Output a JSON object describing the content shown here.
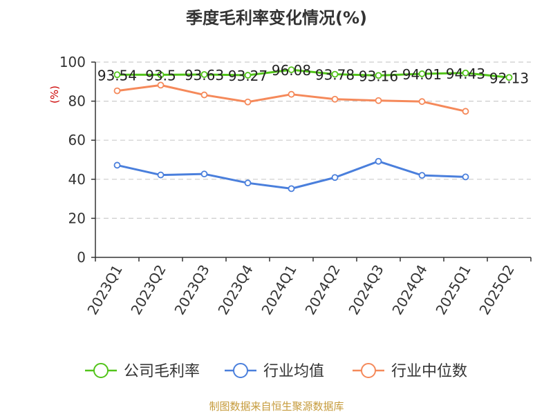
{
  "colors": {
    "company": "#52c41a",
    "industry_avg": "#4a7fdc",
    "industry_median": "#f5895a",
    "axis": "#333333",
    "grid": "#cccccc",
    "ylabel": "#cc0000",
    "footer": "#c59a3a"
  },
  "footer": "制图数据来自恒生聚源数据库",
  "chart_data": {
    "type": "line",
    "title": "季度毛利率变化情况(%)",
    "xlabel": "",
    "ylabel": "(%)",
    "ylim": [
      0,
      100
    ],
    "yticks": [
      0,
      20,
      40,
      60,
      80,
      100
    ],
    "grid": true,
    "legend_position": "bottom",
    "categories": [
      "2023Q1",
      "2023Q2",
      "2023Q3",
      "2023Q4",
      "2024Q1",
      "2024Q2",
      "2024Q3",
      "2024Q4",
      "2025Q1",
      "2025Q2"
    ],
    "series": [
      {
        "name": "公司毛利率",
        "key": "company",
        "values": [
          93.54,
          93.5,
          93.63,
          93.27,
          96.08,
          93.78,
          93.16,
          94.01,
          94.43,
          92.13
        ],
        "labels": [
          "93.54",
          "93.5",
          "93.63",
          "93.27",
          "96.08",
          "93.78",
          "93.16",
          "94.01",
          "94.43",
          "92.13"
        ]
      },
      {
        "name": "行业均值",
        "key": "industry_avg",
        "values": [
          47.2,
          42.2,
          42.7,
          38.1,
          35.2,
          40.9,
          49.2,
          42.0,
          41.2,
          null
        ]
      },
      {
        "name": "行业中位数",
        "key": "industry_median",
        "values": [
          85.3,
          88.2,
          83.2,
          79.6,
          83.5,
          81.0,
          80.3,
          79.8,
          74.8,
          null
        ]
      }
    ]
  }
}
